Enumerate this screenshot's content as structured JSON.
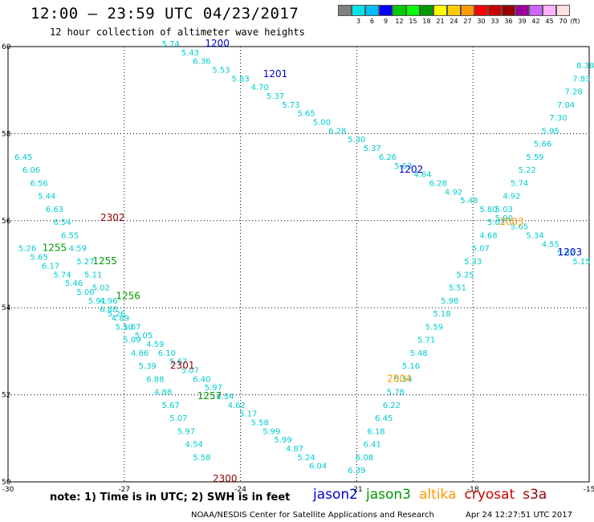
{
  "title": "12:00 – 23:59 UTC 04/23/2017",
  "subtitle": "12 hour collection of altimeter wave heights",
  "colorbar": {
    "unit": "(ft)",
    "levels": [
      {
        "label": "",
        "color": "#808080"
      },
      {
        "label": "3",
        "color": "#00e5e5"
      },
      {
        "label": "6",
        "color": "#00bfff"
      },
      {
        "label": "9",
        "color": "#0000ff"
      },
      {
        "label": "12",
        "color": "#00cc00"
      },
      {
        "label": "15",
        "color": "#00ff00"
      },
      {
        "label": "18",
        "color": "#009900"
      },
      {
        "label": "21",
        "color": "#ffff00"
      },
      {
        "label": "24",
        "color": "#ffcc00"
      },
      {
        "label": "27",
        "color": "#ff9900"
      },
      {
        "label": "30",
        "color": "#ff0000"
      },
      {
        "label": "33",
        "color": "#cc0000"
      },
      {
        "label": "36",
        "color": "#990000"
      },
      {
        "label": "39",
        "color": "#990099"
      },
      {
        "label": "42",
        "color": "#cc66ff"
      },
      {
        "label": "45",
        "color": "#ffb3ff"
      },
      {
        "label": "70",
        "color": "#ffe0e0"
      }
    ]
  },
  "footer": {
    "note": "note: 1) Time is in UTC; 2) SWH is in feet",
    "missions": [
      {
        "name": "jason2",
        "color": "#0000cc"
      },
      {
        "name": "jason3",
        "color": "#009900"
      },
      {
        "name": "altika",
        "color": "#ff9900"
      },
      {
        "name": "cryosat",
        "color": "#cc0000"
      },
      {
        "name": "s3a",
        "color": "#990000"
      }
    ],
    "credit": "NOAA/NESDIS Center for Satellite Applications and Research",
    "timestamp": "Apr 24 12:27:51 UTC 2017"
  },
  "chart_data": {
    "type": "scatter",
    "xlim": [
      -30,
      -15
    ],
    "ylim": [
      50,
      60
    ],
    "x_ticks": [
      -30,
      -27,
      -24,
      -21,
      -18,
      -15
    ],
    "y_ticks": [
      50,
      52,
      54,
      56,
      58,
      60
    ],
    "grid": true,
    "series": [
      {
        "name": "jason2",
        "color": "#00cccc",
        "label_color": "#0000cc",
        "passes": [
          {
            "label": "1200",
            "lon": -24.6,
            "lat": 60.0
          },
          {
            "label": "1201",
            "lon": -23.1,
            "lat": 59.3
          },
          {
            "label": "1202",
            "lon": -19.6,
            "lat": 57.1
          },
          {
            "label": "1203",
            "lon": -15.5,
            "lat": 55.2
          }
        ],
        "points": [
          [
            -25.8,
            60.0,
            5.74
          ],
          [
            -25.3,
            59.8,
            5.43
          ],
          [
            -25.0,
            59.6,
            6.36
          ],
          [
            -24.5,
            59.4,
            5.53
          ],
          [
            -24.0,
            59.2,
            5.83
          ],
          [
            -23.5,
            59.0,
            4.7
          ],
          [
            -23.1,
            58.8,
            5.37
          ],
          [
            -22.7,
            58.6,
            5.73
          ],
          [
            -22.3,
            58.4,
            5.65
          ],
          [
            -21.9,
            58.2,
            5.0
          ],
          [
            -21.5,
            58.0,
            6.28
          ],
          [
            -21.0,
            57.8,
            5.3
          ],
          [
            -20.6,
            57.6,
            5.37
          ],
          [
            -20.2,
            57.4,
            6.26
          ],
          [
            -19.8,
            57.2,
            5.63
          ],
          [
            -19.3,
            57.0,
            4.64
          ],
          [
            -18.9,
            56.8,
            6.28
          ],
          [
            -18.5,
            56.6,
            4.92
          ],
          [
            -18.1,
            56.4,
            5.48
          ],
          [
            -17.6,
            56.2,
            5.8
          ],
          [
            -17.2,
            56.0,
            5.9
          ],
          [
            -16.8,
            55.8,
            5.65
          ],
          [
            -16.4,
            55.6,
            5.34
          ],
          [
            -16.0,
            55.4,
            4.55
          ],
          [
            -15.6,
            55.2,
            5.62
          ],
          [
            -15.2,
            55.0,
            5.15
          ]
        ]
      },
      {
        "name": "jason3",
        "color": "#00cccc",
        "label_color": "#009900",
        "passes": [
          {
            "label": "1255",
            "lon": -28.8,
            "lat": 55.3
          },
          {
            "label": "1255",
            "lon": -27.5,
            "lat": 55.0
          },
          {
            "label": "1256",
            "lon": -26.9,
            "lat": 54.2
          },
          {
            "label": "1257",
            "lon": -24.8,
            "lat": 51.9
          }
        ],
        "points": [
          [
            -29.5,
            55.3,
            5.26
          ],
          [
            -29.2,
            55.1,
            5.65
          ],
          [
            -28.9,
            54.9,
            6.17
          ],
          [
            -28.6,
            54.7,
            5.74
          ],
          [
            -28.3,
            54.5,
            5.46
          ],
          [
            -28.0,
            54.3,
            5.06
          ],
          [
            -27.7,
            54.1,
            5.91
          ],
          [
            -27.4,
            53.9,
            6.88
          ],
          [
            -27.1,
            53.7,
            4.89
          ],
          [
            -26.8,
            53.5,
            5.67
          ],
          [
            -26.5,
            53.3,
            5.05
          ],
          [
            -26.2,
            53.1,
            4.59
          ],
          [
            -25.9,
            52.9,
            6.1
          ],
          [
            -25.6,
            52.7,
            5.67
          ],
          [
            -25.3,
            52.5,
            5.07
          ],
          [
            -25.0,
            52.3,
            6.4
          ],
          [
            -24.7,
            52.1,
            5.97
          ],
          [
            -24.4,
            51.9,
            4.54
          ],
          [
            -24.1,
            51.7,
            4.62
          ],
          [
            -23.8,
            51.5,
            5.17
          ],
          [
            -23.5,
            51.3,
            5.58
          ],
          [
            -23.2,
            51.1,
            5.99
          ],
          [
            -22.9,
            50.9,
            5.99
          ],
          [
            -22.6,
            50.7,
            4.87
          ],
          [
            -22.3,
            50.5,
            5.24
          ],
          [
            -22.0,
            50.3,
            6.04
          ]
        ]
      },
      {
        "name": "altika",
        "color": "#00cccc",
        "label_color": "#ff9900",
        "passes": [
          {
            "label": "2003",
            "lon": -17.0,
            "lat": 55.9
          },
          {
            "label": "2004",
            "lon": -19.9,
            "lat": 52.3
          }
        ],
        "points": [
          [
            -21.0,
            50.2,
            6.39
          ],
          [
            -20.8,
            50.5,
            6.08
          ],
          [
            -20.6,
            50.8,
            6.41
          ],
          [
            -20.5,
            51.1,
            6.18
          ],
          [
            -20.3,
            51.4,
            6.45
          ],
          [
            -20.1,
            51.7,
            6.22
          ],
          [
            -20.0,
            52.0,
            5.78
          ],
          [
            -19.8,
            52.3,
            5.54
          ],
          [
            -19.6,
            52.6,
            5.16
          ],
          [
            -19.4,
            52.9,
            5.48
          ],
          [
            -19.2,
            53.2,
            5.71
          ],
          [
            -19.0,
            53.5,
            5.59
          ],
          [
            -18.8,
            53.8,
            5.18
          ],
          [
            -18.6,
            54.1,
            5.98
          ],
          [
            -18.4,
            54.4,
            5.51
          ],
          [
            -18.2,
            54.7,
            5.25
          ],
          [
            -18.0,
            55.0,
            5.33
          ],
          [
            -17.8,
            55.3,
            5.07
          ],
          [
            -17.6,
            55.6,
            4.68
          ],
          [
            -17.4,
            55.9,
            5.03
          ],
          [
            -17.2,
            56.2,
            5.03
          ],
          [
            -17.0,
            56.5,
            4.92
          ],
          [
            -16.8,
            56.8,
            5.74
          ],
          [
            -16.6,
            57.1,
            5.22
          ],
          [
            -16.4,
            57.4,
            5.59
          ],
          [
            -16.2,
            57.7,
            5.66
          ],
          [
            -16.0,
            58.0,
            5.95
          ],
          [
            -15.8,
            58.3,
            7.3
          ],
          [
            -15.6,
            58.6,
            7.04
          ],
          [
            -15.4,
            58.9,
            7.28
          ],
          [
            -15.2,
            59.2,
            7.83
          ],
          [
            -15.1,
            59.5,
            8.38
          ]
        ]
      },
      {
        "name": "cryosat",
        "color": "#00cccc",
        "label_color": "#990000",
        "passes": [
          {
            "label": "2302",
            "lon": -27.3,
            "lat": 56.0
          },
          {
            "label": "2301",
            "lon": -25.5,
            "lat": 52.6
          },
          {
            "label": "2300",
            "lon": -24.4,
            "lat": 50.0
          }
        ],
        "points": [
          [
            -29.6,
            57.4,
            6.45
          ],
          [
            -29.4,
            57.1,
            6.06
          ],
          [
            -29.2,
            56.8,
            6.56
          ],
          [
            -29.0,
            56.5,
            5.44
          ],
          [
            -28.8,
            56.2,
            6.63
          ],
          [
            -28.6,
            55.9,
            6.54
          ],
          [
            -28.4,
            55.6,
            6.55
          ],
          [
            -28.2,
            55.3,
            4.59
          ],
          [
            -28.0,
            55.0,
            5.27
          ],
          [
            -27.8,
            54.7,
            5.11
          ],
          [
            -27.6,
            54.4,
            5.02
          ],
          [
            -27.4,
            54.1,
            4.96
          ],
          [
            -27.2,
            53.8,
            5.26
          ],
          [
            -27.0,
            53.5,
            5.1
          ],
          [
            -26.8,
            53.2,
            5.09
          ],
          [
            -26.6,
            52.9,
            4.86
          ],
          [
            -26.4,
            52.6,
            5.39
          ],
          [
            -26.2,
            52.3,
            6.88
          ],
          [
            -26.0,
            52.0,
            4.88
          ],
          [
            -25.8,
            51.7,
            5.67
          ],
          [
            -25.6,
            51.4,
            5.07
          ],
          [
            -25.4,
            51.1,
            5.97
          ],
          [
            -25.2,
            50.8,
            4.54
          ],
          [
            -25.0,
            50.5,
            5.58
          ]
        ]
      }
    ]
  }
}
